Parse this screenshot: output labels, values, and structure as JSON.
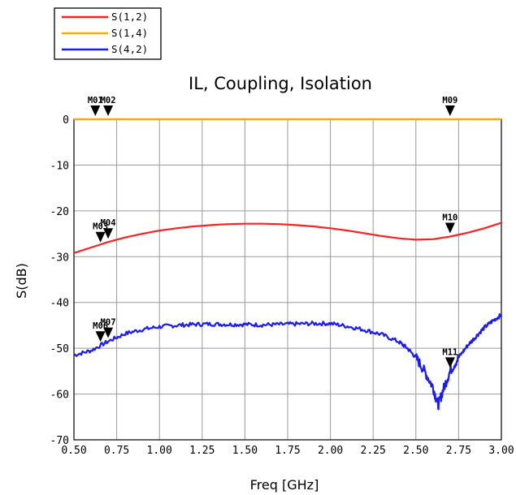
{
  "chart_data": {
    "type": "line",
    "title": "IL, Coupling, Isolation",
    "xlabel": "Freq [GHz]",
    "ylabel": "S(dB)",
    "xlim": [
      0.5,
      3.0
    ],
    "ylim": [
      -70,
      0
    ],
    "grid": true,
    "legend_position": "top-left",
    "x_ticks": [
      "0.50",
      "0.75",
      "1.00",
      "1.25",
      "1.50",
      "1.75",
      "2.00",
      "2.25",
      "2.50",
      "2.75",
      "3.00"
    ],
    "y_ticks": [
      "0",
      "-10",
      "-20",
      "-30",
      "-40",
      "-50",
      "-60",
      "-70"
    ],
    "series": [
      {
        "name": "S(1,2)",
        "color": "#ff2020",
        "x": [
          0.5,
          0.6,
          0.7,
          0.8,
          0.9,
          1.0,
          1.1,
          1.2,
          1.3,
          1.4,
          1.5,
          1.6,
          1.7,
          1.8,
          1.9,
          2.0,
          2.1,
          2.2,
          2.3,
          2.4,
          2.5,
          2.6,
          2.7,
          2.8,
          2.9,
          3.0
        ],
        "y": [
          -29.2,
          -28.0,
          -26.8,
          -25.8,
          -25.0,
          -24.3,
          -23.8,
          -23.4,
          -23.1,
          -22.9,
          -22.8,
          -22.8,
          -22.9,
          -23.1,
          -23.4,
          -23.8,
          -24.3,
          -24.9,
          -25.5,
          -26.0,
          -26.3,
          -26.2,
          -25.6,
          -24.8,
          -23.8,
          -22.6
        ]
      },
      {
        "name": "S(1,4)",
        "color": "#ffa800",
        "x": [
          0.5,
          3.0
        ],
        "y": [
          0,
          0
        ]
      },
      {
        "name": "S(4,2)",
        "color": "#1a1aff",
        "x": [
          0.5,
          0.6,
          0.7,
          0.8,
          0.9,
          1.0,
          1.1,
          1.2,
          1.3,
          1.4,
          1.5,
          1.6,
          1.7,
          1.8,
          1.9,
          2.0,
          2.1,
          2.2,
          2.3,
          2.4,
          2.45,
          2.5,
          2.55,
          2.6,
          2.63,
          2.66,
          2.7,
          2.75,
          2.8,
          2.85,
          2.9,
          2.95,
          3.0
        ],
        "y": [
          -51.5,
          -50.5,
          -48.5,
          -46.8,
          -45.9,
          -45.3,
          -45.0,
          -44.8,
          -44.7,
          -44.8,
          -44.8,
          -44.9,
          -44.8,
          -44.7,
          -44.6,
          -44.6,
          -45.2,
          -46.0,
          -47.0,
          -48.6,
          -50.0,
          -52.0,
          -55.0,
          -58.5,
          -62.5,
          -59.0,
          -55.0,
          -52.0,
          -49.5,
          -47.5,
          -45.5,
          -44.0,
          -42.7
        ]
      }
    ],
    "markers": [
      {
        "label": "M01",
        "x": 0.625,
        "y": 0
      },
      {
        "label": "M02",
        "x": 0.7,
        "y": 0
      },
      {
        "label": "M09",
        "x": 2.7,
        "y": 0
      },
      {
        "label": "M03",
        "x": 0.655,
        "y": -27.6
      },
      {
        "label": "M04",
        "x": 0.7,
        "y": -26.8
      },
      {
        "label": "M10",
        "x": 2.7,
        "y": -25.6
      },
      {
        "label": "M06",
        "x": 0.655,
        "y": -49.3
      },
      {
        "label": "M07",
        "x": 0.7,
        "y": -48.5
      },
      {
        "label": "M11",
        "x": 2.7,
        "y": -55.0
      }
    ]
  }
}
